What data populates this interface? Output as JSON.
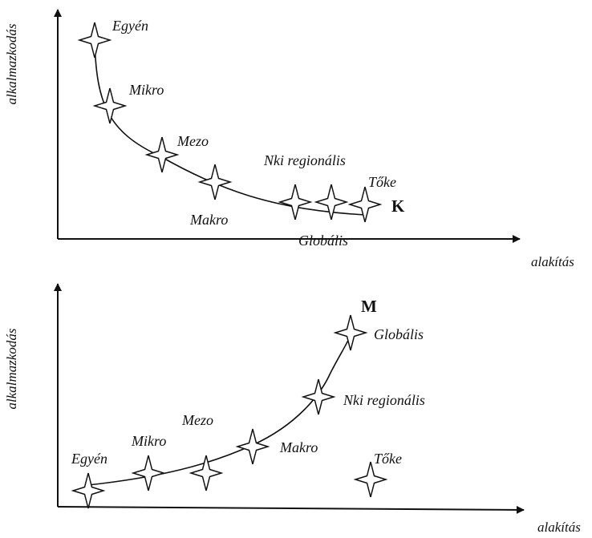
{
  "diagrams": [
    {
      "id": "top",
      "ylabel": "alkalmazkodás",
      "xlabel": "alakítás",
      "curve_label": "K",
      "points": [
        {
          "name": "Egyén"
        },
        {
          "name": "Mikro"
        },
        {
          "name": "Mezo"
        },
        {
          "name": "Makro"
        },
        {
          "name": "Nki regionális"
        },
        {
          "name": "Globális"
        },
        {
          "name": "Tőke"
        }
      ]
    },
    {
      "id": "bottom",
      "ylabel": "alkalmazkodás",
      "xlabel": "alakítás",
      "curve_label": "M",
      "points": [
        {
          "name": "Egyén"
        },
        {
          "name": "Mikro"
        },
        {
          "name": "Mezo"
        },
        {
          "name": "Makro"
        },
        {
          "name": "Nki regionális"
        },
        {
          "name": "Globális"
        },
        {
          "name": "Tőke"
        }
      ]
    }
  ],
  "icons": {
    "marker": "four-point-star-icon"
  }
}
